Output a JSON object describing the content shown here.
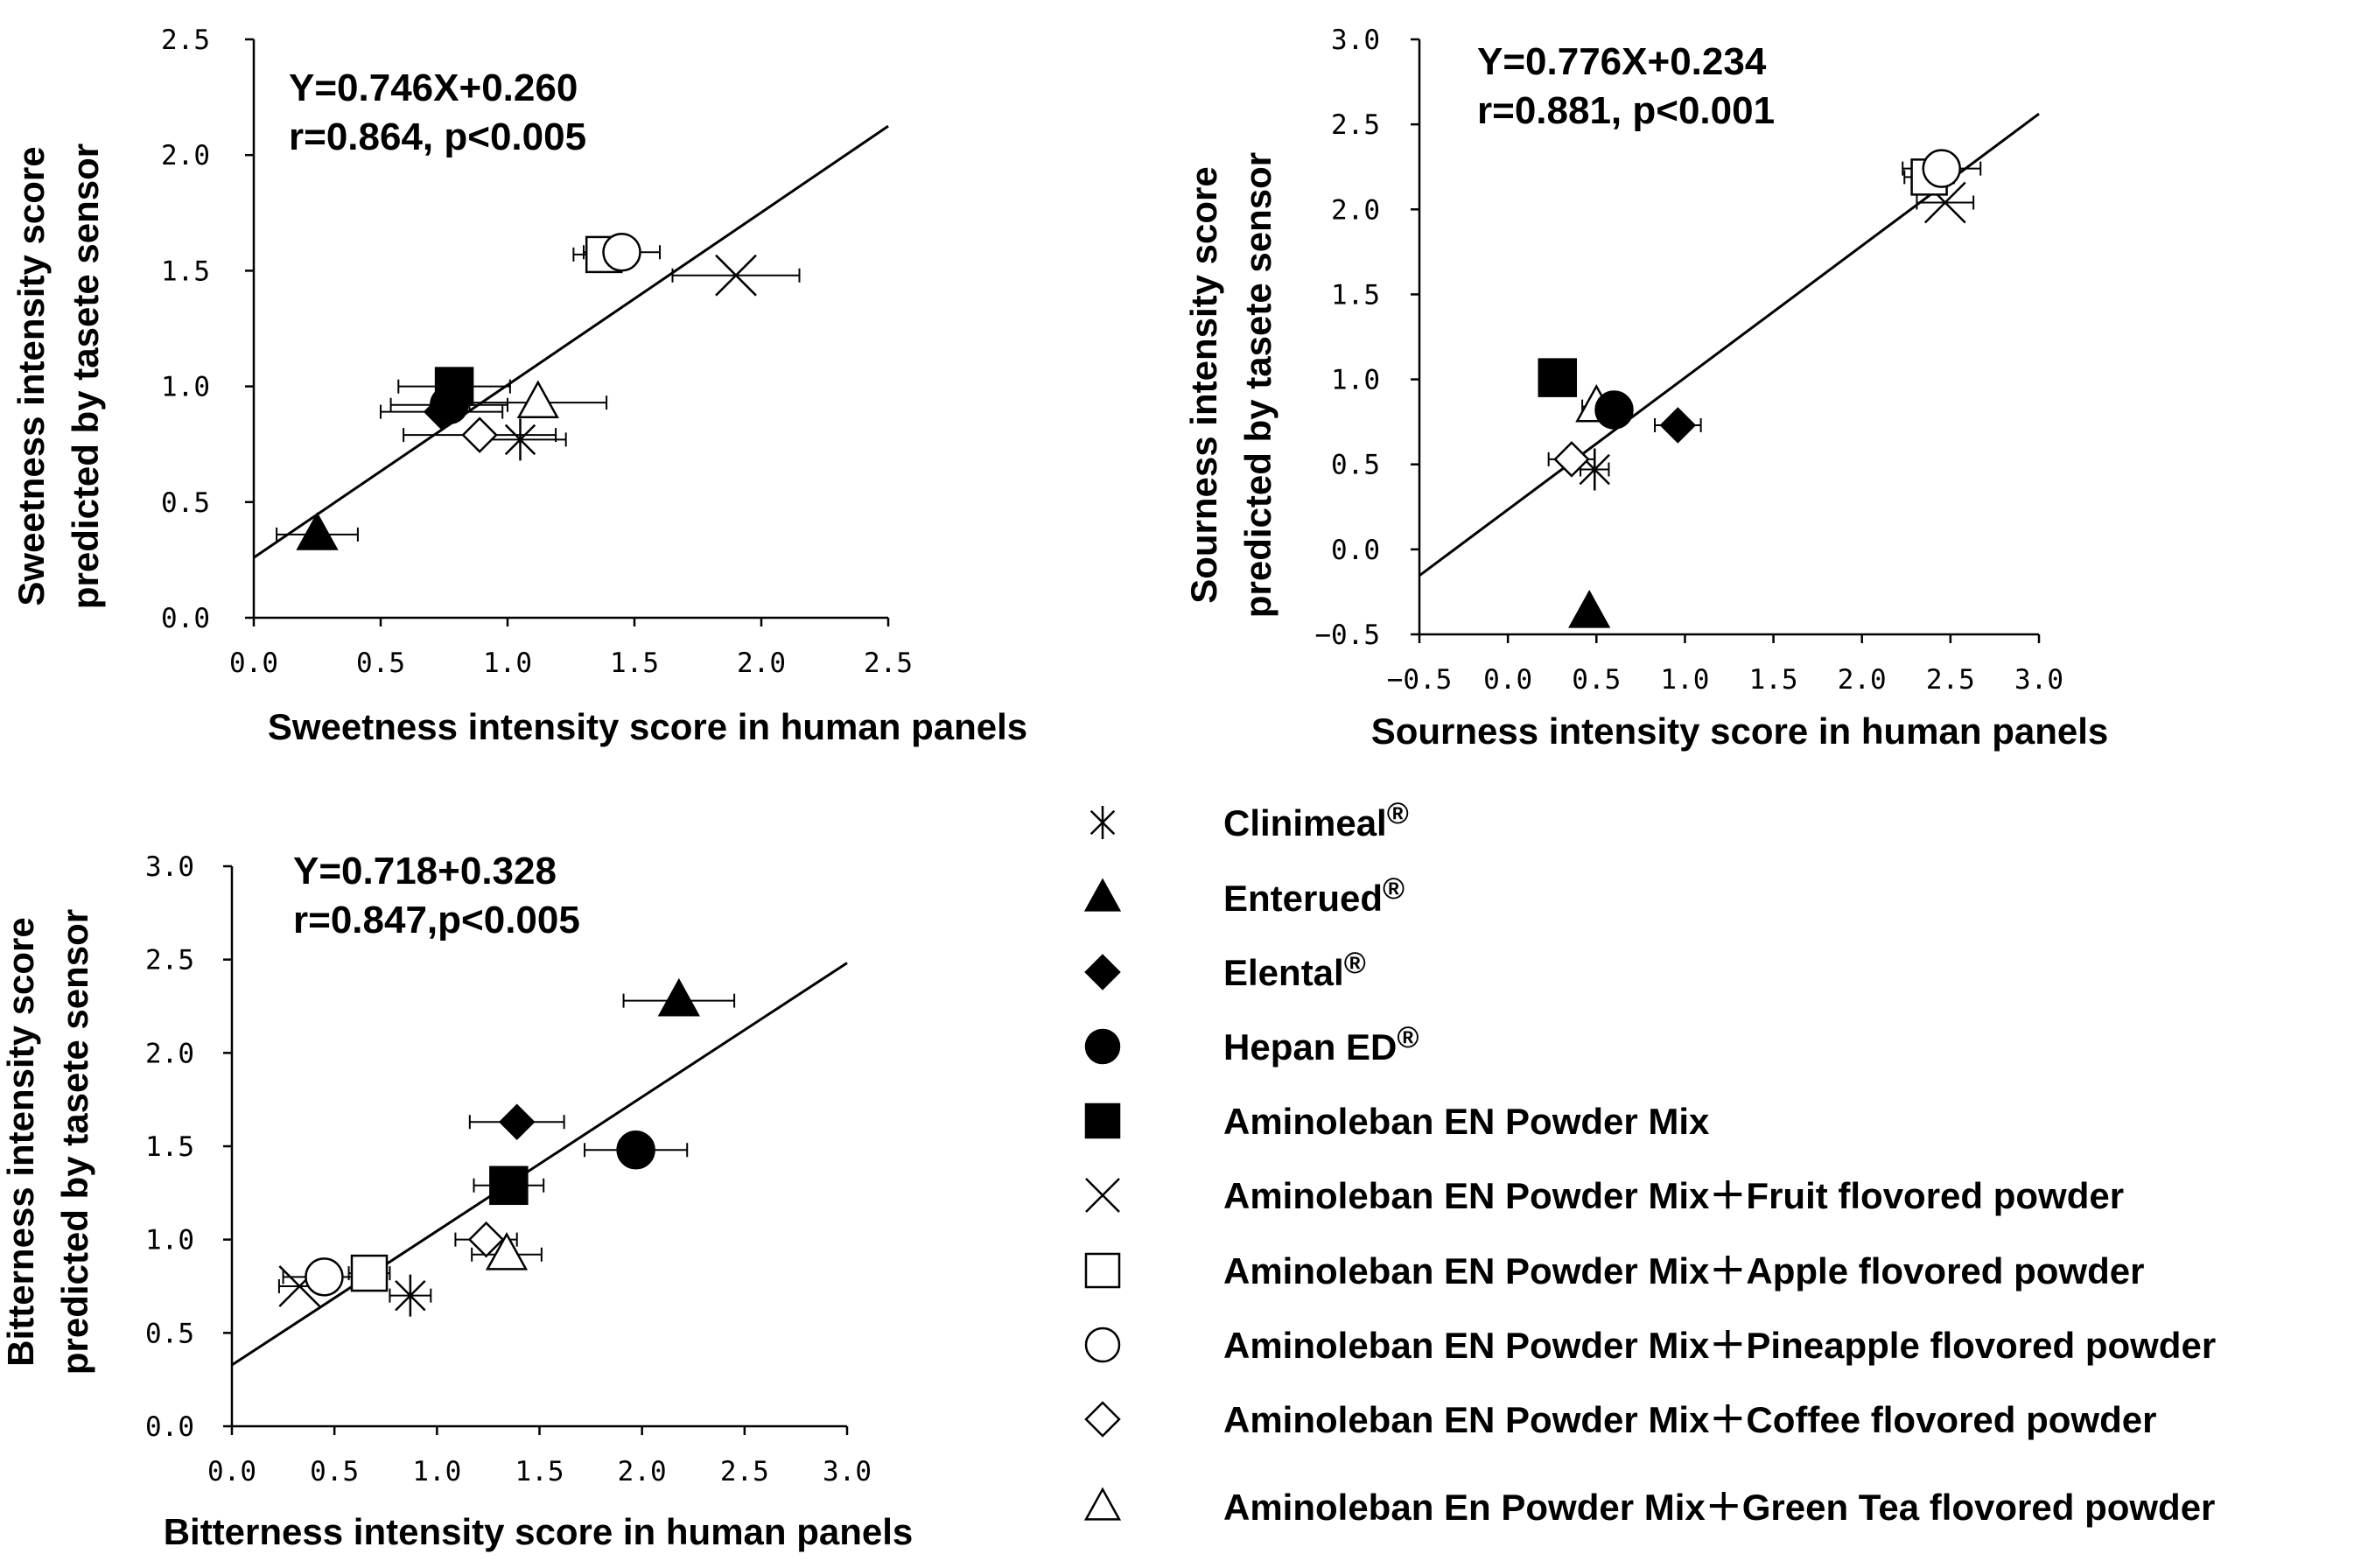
{
  "legend": [
    {
      "marker": "asterisk",
      "label": "Clinimeal",
      "reg": "®"
    },
    {
      "marker": "triangle-filled",
      "label": "Enterued",
      "reg": "®"
    },
    {
      "marker": "diamond-filled",
      "label": "Elental",
      "reg": "®"
    },
    {
      "marker": "circle-filled",
      "label": "Hepan ED",
      "reg": "®"
    },
    {
      "marker": "square-filled",
      "label": "Aminoleban  EN Powder Mix",
      "reg": ""
    },
    {
      "marker": "cross",
      "label": "Aminoleban EN Powder Mix＋Fruit flovored powder",
      "reg": ""
    },
    {
      "marker": "square-open",
      "label": "Aminoleban EN Powder Mix＋Apple flovored powder",
      "reg": ""
    },
    {
      "marker": "circle-open",
      "label": "Aminoleban EN Powder Mix＋Pineapple flovored powder",
      "reg": ""
    },
    {
      "marker": "diamond-open",
      "label": "Aminoleban EN Powder Mix＋Coffee flovored powder",
      "reg": ""
    },
    {
      "marker": "triangle-open",
      "label": "Aminoleban En Powder Mix＋Green Tea flovored powder",
      "reg": ""
    }
  ],
  "chart_data": [
    {
      "type": "scatter",
      "xlabel": "Sweetness intensity score in human panels",
      "ylabel": [
        "Sweetness intensity score",
        "predicted by tasete sensor"
      ],
      "xlim": [
        0,
        2.5
      ],
      "ylim": [
        0,
        2.5
      ],
      "xticks": [
        "0.0",
        "0.5",
        "1.0",
        "1.5",
        "2.0",
        "2.5"
      ],
      "yticks": [
        "0.0",
        "0.5",
        "1.0",
        "1.5",
        "2.0",
        "2.5"
      ],
      "annotation": [
        "Y=0.746X+0.260",
        "r=0.864, p<0.005"
      ],
      "regression": {
        "slope": 0.746,
        "intercept": 0.26
      },
      "points": [
        {
          "marker": "asterisk",
          "x": 1.05,
          "y": 0.77,
          "xerr": 0.18
        },
        {
          "marker": "triangle-filled",
          "x": 0.25,
          "y": 0.36,
          "xerr": 0.16
        },
        {
          "marker": "diamond-filled",
          "x": 0.74,
          "y": 0.89,
          "xerr": 0.24
        },
        {
          "marker": "circle-filled",
          "x": 0.77,
          "y": 0.92,
          "xerr": 0.23
        },
        {
          "marker": "square-filled",
          "x": 0.79,
          "y": 1.0,
          "xerr": 0.22
        },
        {
          "marker": "cross",
          "x": 1.9,
          "y": 1.48,
          "xerr": 0.25
        },
        {
          "marker": "square-open",
          "x": 1.38,
          "y": 1.57,
          "xerr": 0.12
        },
        {
          "marker": "circle-open",
          "x": 1.45,
          "y": 1.58,
          "xerr": 0.15
        },
        {
          "marker": "diamond-open",
          "x": 0.89,
          "y": 0.79,
          "xerr": 0.3
        },
        {
          "marker": "triangle-open",
          "x": 1.12,
          "y": 0.93,
          "xerr": 0.27
        }
      ]
    },
    {
      "type": "scatter",
      "xlabel": "Sourness intensity score in human panels",
      "ylabel": [
        "Sourness intensity score",
        "predicted by tasete sensor"
      ],
      "xlim": [
        -0.5,
        3.0
      ],
      "ylim": [
        -0.5,
        3.0
      ],
      "xticks": [
        "−0.5",
        "0.0",
        "0.5",
        "1.0",
        "1.5",
        "2.0",
        "2.5",
        "3.0"
      ],
      "yticks": [
        "−0.5",
        "0.0",
        "0.5",
        "1.0",
        "1.5",
        "2.0",
        "2.5",
        "3.0"
      ],
      "annotation": [
        "Y=0.776X+0.234",
        "r=0.881, p<0.001"
      ],
      "regression": {
        "slope": 0.776,
        "intercept": 0.234
      },
      "points": [
        {
          "marker": "asterisk",
          "x": 0.49,
          "y": 0.47,
          "xerr": 0.08
        },
        {
          "marker": "triangle-filled",
          "x": 0.46,
          "y": -0.37,
          "xerr": 0
        },
        {
          "marker": "diamond-filled",
          "x": 0.96,
          "y": 0.73,
          "xerr": 0.13
        },
        {
          "marker": "circle-filled",
          "x": 0.6,
          "y": 0.82,
          "xerr": 0.07
        },
        {
          "marker": "square-filled",
          "x": 0.28,
          "y": 1.01,
          "xerr": 0.08
        },
        {
          "marker": "cross",
          "x": 2.47,
          "y": 2.04,
          "xerr": 0.16
        },
        {
          "marker": "square-open",
          "x": 2.38,
          "y": 2.19,
          "xerr": 0.14
        },
        {
          "marker": "circle-open",
          "x": 2.45,
          "y": 2.24,
          "xerr": 0.22
        },
        {
          "marker": "diamond-open",
          "x": 0.36,
          "y": 0.53,
          "xerr": 0.13
        },
        {
          "marker": "triangle-open",
          "x": 0.5,
          "y": 0.84,
          "xerr": 0.08
        }
      ]
    },
    {
      "type": "scatter",
      "xlabel": "Bitterness intensity score in human panels",
      "ylabel": [
        "Bitterness intensity score",
        "predicted by tasete sensor"
      ],
      "xlim": [
        0,
        3.0
      ],
      "ylim": [
        0,
        3.0
      ],
      "xticks": [
        "0.0",
        "0.5",
        "1.0",
        "1.5",
        "2.0",
        "2.5",
        "3.0"
      ],
      "yticks": [
        "0.0",
        "0.5",
        "1.0",
        "1.5",
        "2.0",
        "2.5",
        "3.0"
      ],
      "annotation": [
        "Y=0.718+0.328",
        "r=0.847,p<0.005"
      ],
      "regression": {
        "slope": 0.718,
        "intercept": 0.328
      },
      "points": [
        {
          "marker": "asterisk",
          "x": 0.87,
          "y": 0.7,
          "xerr": 0.1
        },
        {
          "marker": "triangle-filled",
          "x": 2.18,
          "y": 2.28,
          "xerr": 0.27
        },
        {
          "marker": "diamond-filled",
          "x": 1.39,
          "y": 1.63,
          "xerr": 0.23
        },
        {
          "marker": "circle-filled",
          "x": 1.97,
          "y": 1.48,
          "xerr": 0.25
        },
        {
          "marker": "square-filled",
          "x": 1.35,
          "y": 1.29,
          "xerr": 0.17
        },
        {
          "marker": "cross",
          "x": 0.33,
          "y": 0.75,
          "xerr": 0.1
        },
        {
          "marker": "square-open",
          "x": 0.67,
          "y": 0.82,
          "xerr": 0.1
        },
        {
          "marker": "circle-open",
          "x": 0.45,
          "y": 0.8,
          "xerr": 0.2
        },
        {
          "marker": "diamond-open",
          "x": 1.24,
          "y": 1.0,
          "xerr": 0.15
        },
        {
          "marker": "triangle-open",
          "x": 1.34,
          "y": 0.92,
          "xerr": 0.17
        }
      ]
    }
  ]
}
